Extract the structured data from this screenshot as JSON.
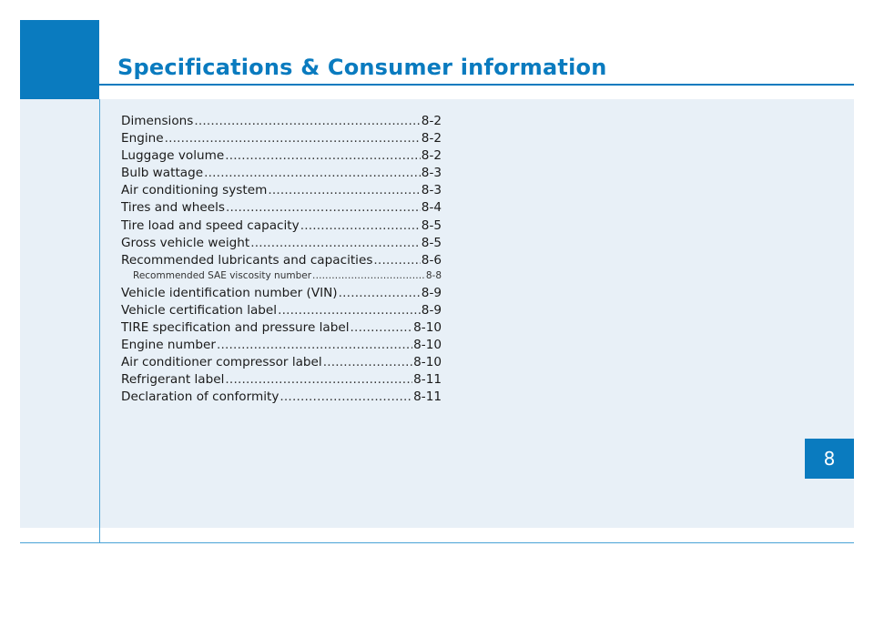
{
  "header": {
    "title": "Specifications & Consumer information"
  },
  "chapter_tab": {
    "number": "8"
  },
  "colors": {
    "accent": "#0a7bbf",
    "panel": "#e8f0f7"
  },
  "toc": {
    "entries": [
      {
        "label": "Dimensions",
        "page": "8-2",
        "sub": false
      },
      {
        "label": "Engine",
        "page": "8-2",
        "sub": false
      },
      {
        "label": "Luggage volume",
        "page": "8-2",
        "sub": false
      },
      {
        "label": "Bulb wattage",
        "page": "8-3",
        "sub": false
      },
      {
        "label": "Air conditioning system",
        "page": "8-3",
        "sub": false
      },
      {
        "label": "Tires and wheels",
        "page": "8-4",
        "sub": false
      },
      {
        "label": "Tire load and speed capacity",
        "page": "8-5",
        "sub": false
      },
      {
        "label": "Gross vehicle weight",
        "page": "8-5",
        "sub": false
      },
      {
        "label": "Recommended lubricants and capacities",
        "page": "8-6",
        "sub": false
      },
      {
        "label": "Recommended SAE viscosity number",
        "page": "8-8",
        "sub": true
      },
      {
        "label": "Vehicle identification number (VIN)",
        "page": "8-9",
        "sub": false
      },
      {
        "label": "Vehicle certification label",
        "page": "8-9",
        "sub": false
      },
      {
        "label": "TIRE specification and pressure label",
        "page": "8-10",
        "sub": false
      },
      {
        "label": "Engine number",
        "page": "8-10",
        "sub": false
      },
      {
        "label": "Air conditioner compressor label",
        "page": "8-10",
        "sub": false
      },
      {
        "label": "Refrigerant label",
        "page": "8-11",
        "sub": false
      },
      {
        "label": "Declaration of conformity",
        "page": "8-11",
        "sub": false
      }
    ]
  }
}
